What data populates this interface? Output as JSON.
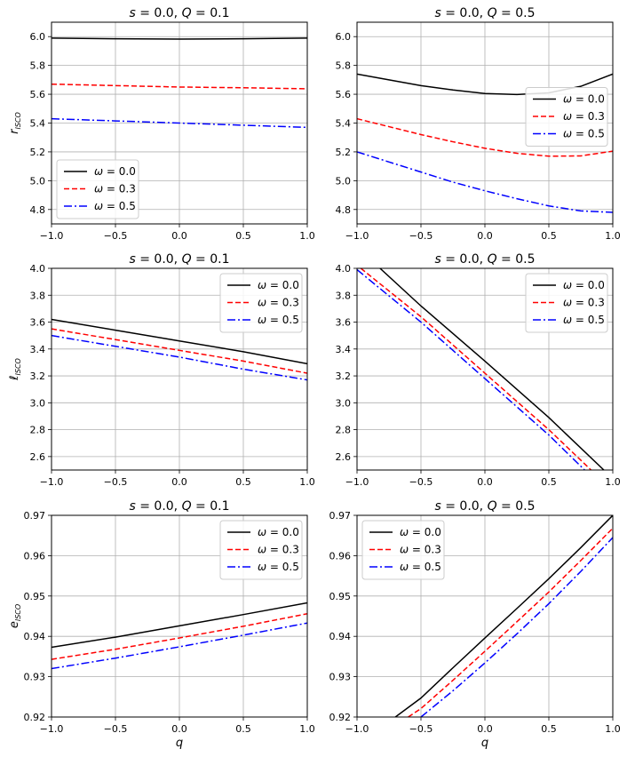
{
  "chart_data": [
    {
      "type": "line",
      "row": 0,
      "col": 0,
      "title": "s = 0.0, Q = 0.1",
      "xlabel": "",
      "ylabel": "r_ISCO",
      "xlim": [
        -1.0,
        1.0
      ],
      "ylim": [
        4.7,
        6.1
      ],
      "xticks": [
        "−1.0",
        "−0.5",
        "0.0",
        "0.5",
        "1.0"
      ],
      "yticks": [
        {
          "v": 4.8,
          "t": "4.8"
        },
        {
          "v": 5.0,
          "t": "5.0"
        },
        {
          "v": 5.2,
          "t": "5.2"
        },
        {
          "v": 5.4,
          "t": "5.4"
        },
        {
          "v": 5.6,
          "t": "5.6"
        },
        {
          "v": 5.8,
          "t": "5.8"
        },
        {
          "v": 6.0,
          "t": "6.0"
        }
      ],
      "grid": true,
      "legend": "lower-left",
      "series": [
        {
          "name": "ω = 0.0",
          "color": "#000000",
          "dash": "solid",
          "x": [
            -1.0,
            -0.5,
            0.0,
            0.5,
            1.0
          ],
          "y": [
            5.99,
            5.985,
            5.983,
            5.985,
            5.99
          ]
        },
        {
          "name": "ω = 0.3",
          "color": "#ff0000",
          "dash": "dashed",
          "x": [
            -1.0,
            -0.5,
            0.0,
            0.5,
            1.0
          ],
          "y": [
            5.67,
            5.66,
            5.65,
            5.645,
            5.638
          ]
        },
        {
          "name": "ω = 0.5",
          "color": "#0000ff",
          "dash": "dashdot",
          "x": [
            -1.0,
            -0.5,
            0.0,
            0.5,
            1.0
          ],
          "y": [
            5.43,
            5.415,
            5.4,
            5.385,
            5.37
          ]
        }
      ]
    },
    {
      "type": "line",
      "row": 0,
      "col": 1,
      "title": "s = 0.0, Q = 0.5",
      "xlabel": "",
      "ylabel": "",
      "xlim": [
        -1.0,
        1.0
      ],
      "ylim": [
        4.7,
        6.1
      ],
      "xticks": [
        "−1.0",
        "−0.5",
        "0.0",
        "0.5",
        "1.0"
      ],
      "yticks": [
        {
          "v": 4.8,
          "t": "4.8"
        },
        {
          "v": 5.0,
          "t": "5.0"
        },
        {
          "v": 5.2,
          "t": "5.2"
        },
        {
          "v": 5.4,
          "t": "5.4"
        },
        {
          "v": 5.6,
          "t": "5.6"
        },
        {
          "v": 5.8,
          "t": "5.8"
        },
        {
          "v": 6.0,
          "t": "6.0"
        }
      ],
      "grid": true,
      "legend": "center-right",
      "series": [
        {
          "name": "ω = 0.0",
          "color": "#000000",
          "dash": "solid",
          "x": [
            -1.0,
            -0.75,
            -0.5,
            -0.25,
            0.0,
            0.25,
            0.5,
            0.75,
            1.0
          ],
          "y": [
            5.74,
            5.7,
            5.66,
            5.63,
            5.605,
            5.598,
            5.61,
            5.655,
            5.74
          ]
        },
        {
          "name": "ω = 0.3",
          "color": "#ff0000",
          "dash": "dashed",
          "x": [
            -1.0,
            -0.75,
            -0.5,
            -0.25,
            0.0,
            0.25,
            0.5,
            0.75,
            1.0
          ],
          "y": [
            5.43,
            5.375,
            5.32,
            5.27,
            5.225,
            5.19,
            5.17,
            5.172,
            5.205
          ]
        },
        {
          "name": "ω = 0.5",
          "color": "#0000ff",
          "dash": "dashdot",
          "x": [
            -1.0,
            -0.75,
            -0.5,
            -0.25,
            0.0,
            0.25,
            0.5,
            0.75,
            1.0
          ],
          "y": [
            5.2,
            5.13,
            5.06,
            4.99,
            4.93,
            4.875,
            4.825,
            4.79,
            4.78
          ]
        }
      ]
    },
    {
      "type": "line",
      "row": 1,
      "col": 0,
      "title": "s = 0.0, Q = 0.1",
      "xlabel": "",
      "ylabel": "ℓ_ISCO",
      "xlim": [
        -1.0,
        1.0
      ],
      "ylim": [
        2.5,
        4.0
      ],
      "xticks": [
        "−1.0",
        "−0.5",
        "0.0",
        "0.5",
        "1.0"
      ],
      "yticks": [
        {
          "v": 2.6,
          "t": "2.6"
        },
        {
          "v": 2.8,
          "t": "2.8"
        },
        {
          "v": 3.0,
          "t": "3.0"
        },
        {
          "v": 3.2,
          "t": "3.2"
        },
        {
          "v": 3.4,
          "t": "3.4"
        },
        {
          "v": 3.6,
          "t": "3.6"
        },
        {
          "v": 3.8,
          "t": "3.8"
        },
        {
          "v": 4.0,
          "t": "4.0"
        }
      ],
      "grid": true,
      "legend": "upper-right",
      "series": [
        {
          "name": "ω = 0.0",
          "color": "#000000",
          "dash": "solid",
          "x": [
            -1.0,
            -0.5,
            0.0,
            0.5,
            1.0
          ],
          "y": [
            3.62,
            3.54,
            3.46,
            3.38,
            3.29
          ]
        },
        {
          "name": "ω = 0.3",
          "color": "#ff0000",
          "dash": "dashed",
          "x": [
            -1.0,
            -0.5,
            0.0,
            0.5,
            1.0
          ],
          "y": [
            3.55,
            3.47,
            3.39,
            3.31,
            3.22
          ]
        },
        {
          "name": "ω = 0.5",
          "color": "#0000ff",
          "dash": "dashdot",
          "x": [
            -1.0,
            -0.5,
            0.0,
            0.5,
            1.0
          ],
          "y": [
            3.5,
            3.42,
            3.34,
            3.25,
            3.17
          ]
        }
      ]
    },
    {
      "type": "line",
      "row": 1,
      "col": 1,
      "title": "s = 0.0, Q = 0.5",
      "xlabel": "",
      "ylabel": "",
      "xlim": [
        -1.0,
        1.0
      ],
      "ylim": [
        2.5,
        4.0
      ],
      "xticks": [
        "−1.0",
        "−0.5",
        "0.0",
        "0.5",
        "1.0"
      ],
      "yticks": [
        {
          "v": 2.6,
          "t": "2.6"
        },
        {
          "v": 2.8,
          "t": "2.8"
        },
        {
          "v": 3.0,
          "t": "3.0"
        },
        {
          "v": 3.2,
          "t": "3.2"
        },
        {
          "v": 3.4,
          "t": "3.4"
        },
        {
          "v": 3.6,
          "t": "3.6"
        },
        {
          "v": 3.8,
          "t": "3.8"
        },
        {
          "v": 4.0,
          "t": "4.0"
        }
      ],
      "grid": true,
      "legend": "upper-right",
      "series": [
        {
          "name": "ω = 0.0",
          "color": "#000000",
          "dash": "solid",
          "x": [
            -0.82,
            -0.5,
            0.0,
            0.5,
            0.93
          ],
          "y": [
            4.0,
            3.72,
            3.31,
            2.89,
            2.5
          ]
        },
        {
          "name": "ω = 0.3",
          "color": "#ff0000",
          "dash": "dashed",
          "x": [
            -0.97,
            -0.5,
            0.0,
            0.5,
            0.83
          ],
          "y": [
            4.0,
            3.64,
            3.22,
            2.8,
            2.5
          ]
        },
        {
          "name": "ω = 0.5",
          "color": "#0000ff",
          "dash": "dashdot",
          "x": [
            -1.0,
            -0.5,
            0.0,
            0.5,
            0.78
          ],
          "y": [
            3.99,
            3.6,
            3.18,
            2.76,
            2.5
          ]
        }
      ]
    },
    {
      "type": "line",
      "row": 2,
      "col": 0,
      "title": "s = 0.0, Q = 0.1",
      "xlabel": "q",
      "ylabel": "e_ISCO",
      "xlim": [
        -1.0,
        1.0
      ],
      "ylim": [
        0.92,
        0.97
      ],
      "xticks": [
        "−1.0",
        "−0.5",
        "0.0",
        "0.5",
        "1.0"
      ],
      "yticks": [
        {
          "v": 0.92,
          "t": "0.92"
        },
        {
          "v": 0.93,
          "t": "0.93"
        },
        {
          "v": 0.94,
          "t": "0.94"
        },
        {
          "v": 0.95,
          "t": "0.95"
        },
        {
          "v": 0.96,
          "t": "0.96"
        },
        {
          "v": 0.97,
          "t": "0.97"
        }
      ],
      "grid": true,
      "legend": "upper-right",
      "series": [
        {
          "name": "ω = 0.0",
          "color": "#000000",
          "dash": "solid",
          "x": [
            -1.0,
            -0.5,
            0.0,
            0.5,
            1.0
          ],
          "y": [
            0.9373,
            0.9398,
            0.9426,
            0.9454,
            0.9483
          ]
        },
        {
          "name": "ω = 0.3",
          "color": "#ff0000",
          "dash": "dashed",
          "x": [
            -1.0,
            -0.5,
            0.0,
            0.5,
            1.0
          ],
          "y": [
            0.9343,
            0.9368,
            0.9396,
            0.9425,
            0.9456
          ]
        },
        {
          "name": "ω = 0.5",
          "color": "#0000ff",
          "dash": "dashdot",
          "x": [
            -1.0,
            -0.5,
            0.0,
            0.5,
            1.0
          ],
          "y": [
            0.932,
            0.9346,
            0.9374,
            0.9403,
            0.9433
          ]
        }
      ]
    },
    {
      "type": "line",
      "row": 2,
      "col": 1,
      "title": "s = 0.0, Q = 0.5",
      "xlabel": "q",
      "ylabel": "",
      "xlim": [
        -1.0,
        1.0
      ],
      "ylim": [
        0.92,
        0.97
      ],
      "xticks": [
        "−1.0",
        "−0.5",
        "0.0",
        "0.5",
        "1.0"
      ],
      "yticks": [
        {
          "v": 0.92,
          "t": "0.92"
        },
        {
          "v": 0.93,
          "t": "0.93"
        },
        {
          "v": 0.94,
          "t": "0.94"
        },
        {
          "v": 0.95,
          "t": "0.95"
        },
        {
          "v": 0.96,
          "t": "0.96"
        },
        {
          "v": 0.97,
          "t": "0.97"
        }
      ],
      "grid": true,
      "legend": "upper-left",
      "series": [
        {
          "name": "ω = 0.0",
          "color": "#000000",
          "dash": "solid",
          "x": [
            -0.7,
            -0.5,
            -0.25,
            0.0,
            0.25,
            0.5,
            0.75,
            1.0
          ],
          "y": [
            0.92,
            0.9247,
            0.9322,
            0.9396,
            0.9469,
            0.9543,
            0.962,
            0.97
          ]
        },
        {
          "name": "ω = 0.3",
          "color": "#ff0000",
          "dash": "dashed",
          "x": [
            -0.6,
            -0.5,
            -0.25,
            0.0,
            0.25,
            0.5,
            0.75,
            1.0
          ],
          "y": [
            0.92,
            0.9221,
            0.9291,
            0.9363,
            0.9436,
            0.951,
            0.9588,
            0.9668
          ]
        },
        {
          "name": "ω = 0.5",
          "color": "#0000ff",
          "dash": "dashdot",
          "x": [
            -0.5,
            -0.25,
            0.0,
            0.25,
            0.5,
            0.75,
            1.0
          ],
          "y": [
            0.92,
            0.9265,
            0.9334,
            0.9406,
            0.9481,
            0.9561,
            0.9645
          ]
        }
      ]
    }
  ]
}
